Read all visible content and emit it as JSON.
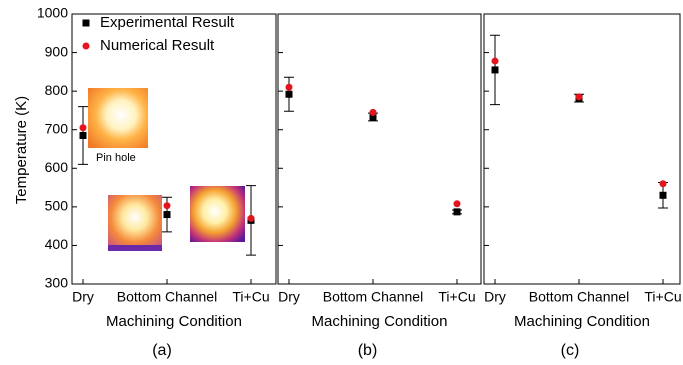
{
  "chart_data": [
    {
      "type": "scatter",
      "label": "(a)",
      "xlabel": "Machining Condition",
      "ylabel": "Temperature (K)",
      "show_ytick_labels": true,
      "legend": "upper left",
      "categories": [
        "Dry",
        "Bottom Channel",
        "Ti+Cu"
      ],
      "ylim": [
        300,
        1000
      ],
      "yticks": [
        300,
        400,
        500,
        600,
        700,
        800,
        900,
        1000
      ],
      "annotations": [
        {
          "text": "Pin hole"
        }
      ],
      "series": [
        {
          "name": "Experimental Result",
          "color": "#000000",
          "marker": "square",
          "values": [
            685,
            480,
            465
          ],
          "errors": [
            75,
            45,
            90
          ]
        },
        {
          "name": "Numerical Result",
          "color": "#e3141c",
          "marker": "circle",
          "values": [
            705,
            503,
            470
          ]
        }
      ]
    },
    {
      "type": "scatter",
      "label": "(b)",
      "xlabel": "Machining Condition",
      "show_ytick_labels": false,
      "categories": [
        "Dry",
        "Bottom Channel",
        "Ti+Cu"
      ],
      "ylim": [
        300,
        1000
      ],
      "yticks": [
        300,
        400,
        500,
        600,
        700,
        800,
        900,
        1000
      ],
      "series": [
        {
          "color": "#000000",
          "marker": "square",
          "values": [
            792,
            733,
            487
          ],
          "errors": [
            44,
            10,
            5
          ]
        },
        {
          "color": "#e3141c",
          "marker": "circle",
          "values": [
            810,
            745,
            508
          ]
        }
      ]
    },
    {
      "type": "scatter",
      "label": "(c)",
      "xlabel": "Machining Condition",
      "show_ytick_labels": false,
      "categories": [
        "Dry",
        "Bottom Channel",
        "Ti+Cu"
      ],
      "ylim": [
        300,
        1000
      ],
      "yticks": [
        300,
        400,
        500,
        600,
        700,
        800,
        900,
        1000
      ],
      "series": [
        {
          "color": "#000000",
          "marker": "square",
          "values": [
            855,
            782,
            530
          ],
          "errors": [
            90,
            10,
            33
          ]
        },
        {
          "color": "#e3141c",
          "marker": "circle",
          "values": [
            878,
            785,
            560
          ]
        }
      ]
    }
  ]
}
